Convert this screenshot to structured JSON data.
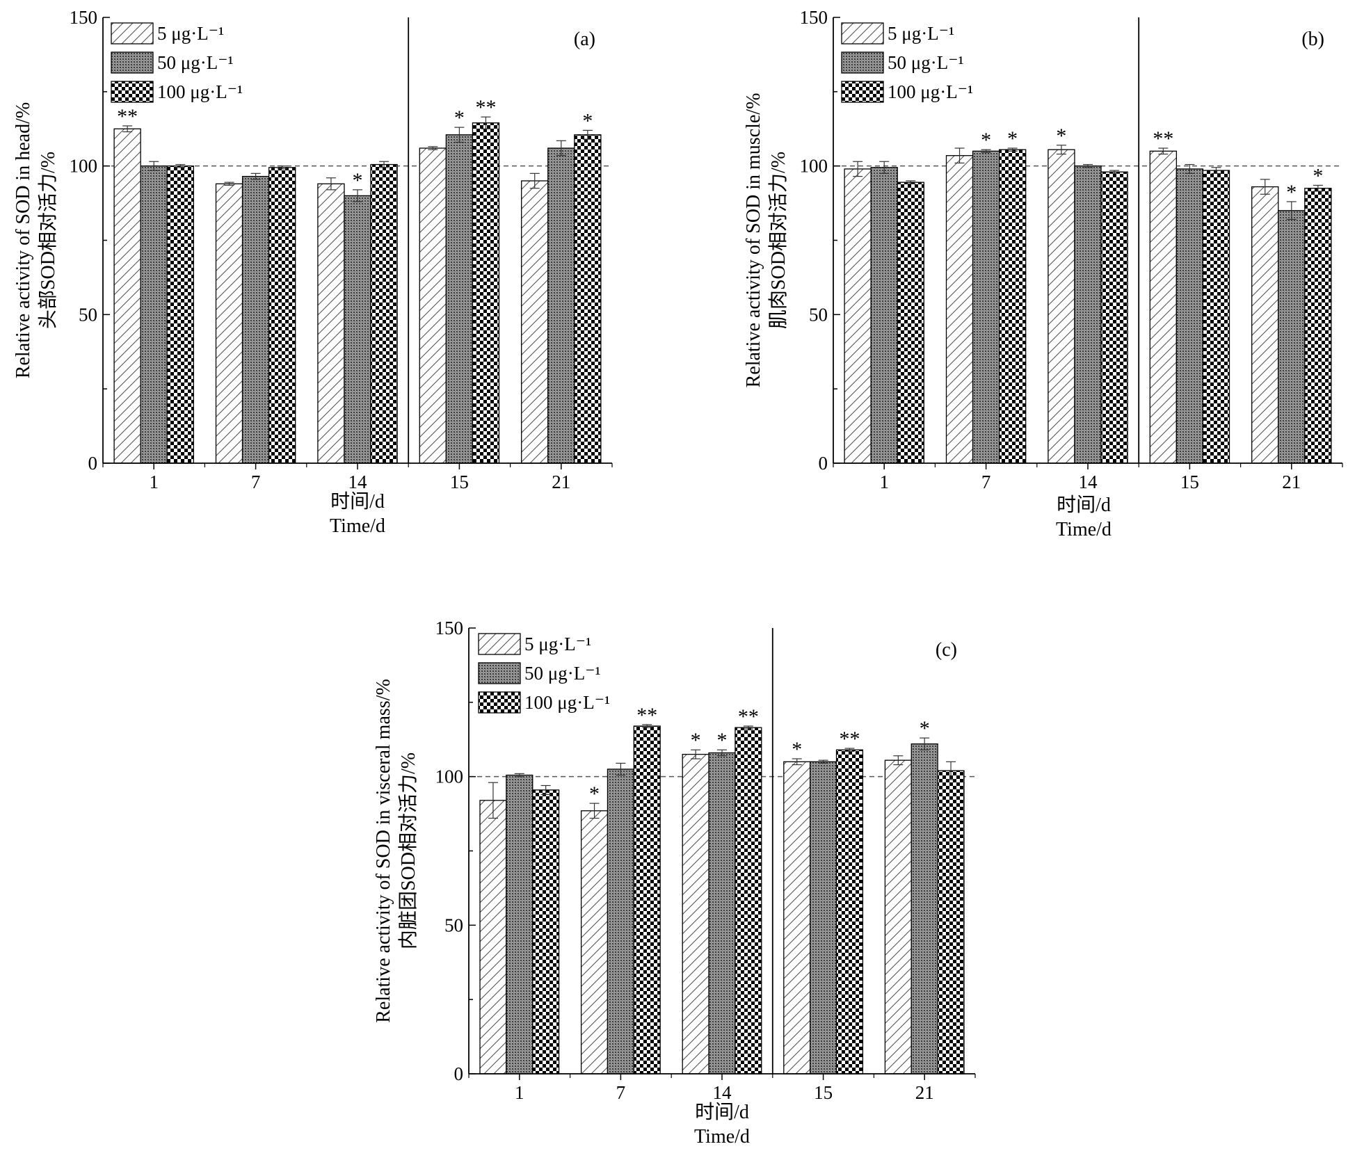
{
  "chart_data": [
    {
      "type": "bar",
      "panel": "(a)",
      "ylabel_cn": "头部SOD相对活力/%",
      "ylabel_en": "Relative activity of SOD in head/%",
      "xlabel_cn": "时间/d",
      "xlabel_en": "Time/d",
      "categories": [
        "1",
        "7",
        "14",
        "15",
        "21"
      ],
      "ylim": [
        0,
        150
      ],
      "yticks": [
        "0",
        "50",
        "100",
        "150"
      ],
      "reference_line": 100,
      "divider_after_category": "14",
      "legend_position": "top-left",
      "series": [
        {
          "name": "5 μg·L⁻¹",
          "pattern": "hatch",
          "values": [
            112.5,
            94.0,
            94.0,
            106.0,
            95.0
          ],
          "errors": [
            1.0,
            0.5,
            2.0,
            0.5,
            2.5
          ],
          "sig": [
            "**",
            "",
            "",
            "",
            ""
          ]
        },
        {
          "name": "50 μg·L⁻¹",
          "pattern": "dots",
          "values": [
            100.0,
            96.5,
            90.0,
            110.5,
            106.0
          ],
          "errors": [
            1.5,
            1.0,
            2.0,
            2.5,
            2.5
          ],
          "sig": [
            "",
            "",
            "*",
            "*",
            ""
          ]
        },
        {
          "name": "100 μg·L⁻¹",
          "pattern": "checker",
          "values": [
            100.0,
            99.5,
            100.5,
            114.5,
            110.5
          ],
          "errors": [
            0.5,
            0.5,
            1.0,
            2.0,
            1.5
          ],
          "sig": [
            "",
            "",
            "",
            "**",
            "*"
          ]
        }
      ]
    },
    {
      "type": "bar",
      "panel": "(b)",
      "ylabel_cn": "肌肉SOD相对活力/%",
      "ylabel_en": "Relative activity of SOD in muscle/%",
      "xlabel_cn": "时间/d",
      "xlabel_en": "Time/d",
      "categories": [
        "1",
        "7",
        "14",
        "15",
        "21"
      ],
      "ylim": [
        0,
        150
      ],
      "yticks": [
        "0",
        "50",
        "100",
        "150"
      ],
      "reference_line": 100,
      "divider_after_category": "14",
      "legend_position": "top-left",
      "series": [
        {
          "name": "5 μg·L⁻¹",
          "pattern": "hatch",
          "values": [
            99.0,
            103.5,
            105.5,
            105.0,
            93.0
          ],
          "errors": [
            2.5,
            2.5,
            1.5,
            1.0,
            2.5
          ],
          "sig": [
            "",
            "",
            "*",
            "**",
            ""
          ]
        },
        {
          "name": "50 μg·L⁻¹",
          "pattern": "dots",
          "values": [
            99.5,
            105.0,
            100.0,
            99.0,
            85.0
          ],
          "errors": [
            2.0,
            0.5,
            0.5,
            1.5,
            3.0
          ],
          "sig": [
            "",
            "*",
            "",
            "",
            "*"
          ]
        },
        {
          "name": "100 μg·L⁻¹",
          "pattern": "checker",
          "values": [
            94.5,
            105.5,
            98.0,
            98.5,
            92.5
          ],
          "errors": [
            0.5,
            0.5,
            0.5,
            1.0,
            1.0
          ],
          "sig": [
            "",
            "*",
            "",
            "",
            "*"
          ]
        }
      ]
    },
    {
      "type": "bar",
      "panel": "(c)",
      "ylabel_cn": "内脏团SOD相对活力/%",
      "ylabel_en": "Relative activity of SOD in visceral mass/%",
      "xlabel_cn": "时间/d",
      "xlabel_en": "Time/d",
      "categories": [
        "1",
        "7",
        "14",
        "15",
        "21"
      ],
      "ylim": [
        0,
        150
      ],
      "yticks": [
        "0",
        "50",
        "100",
        "150"
      ],
      "reference_line": 100,
      "divider_after_category": "14",
      "legend_position": "top-left",
      "series": [
        {
          "name": "5 μg·L⁻¹",
          "pattern": "hatch",
          "values": [
            92.0,
            88.5,
            107.5,
            105.0,
            105.5
          ],
          "errors": [
            6.0,
            2.5,
            1.5,
            1.0,
            1.5
          ],
          "sig": [
            "",
            "*",
            "*",
            "*",
            ""
          ]
        },
        {
          "name": "50 μg·L⁻¹",
          "pattern": "dots",
          "values": [
            100.5,
            102.5,
            108.0,
            105.0,
            111.0
          ],
          "errors": [
            0.5,
            2.0,
            1.0,
            0.5,
            2.0
          ],
          "sig": [
            "",
            "",
            "*",
            "",
            "*"
          ]
        },
        {
          "name": "100 μg·L⁻¹",
          "pattern": "checker",
          "values": [
            95.5,
            117.0,
            116.5,
            109.0,
            102.0
          ],
          "errors": [
            1.5,
            0.5,
            0.5,
            0.5,
            3.0
          ],
          "sig": [
            "",
            "**",
            "**",
            "**",
            ""
          ]
        }
      ]
    }
  ]
}
